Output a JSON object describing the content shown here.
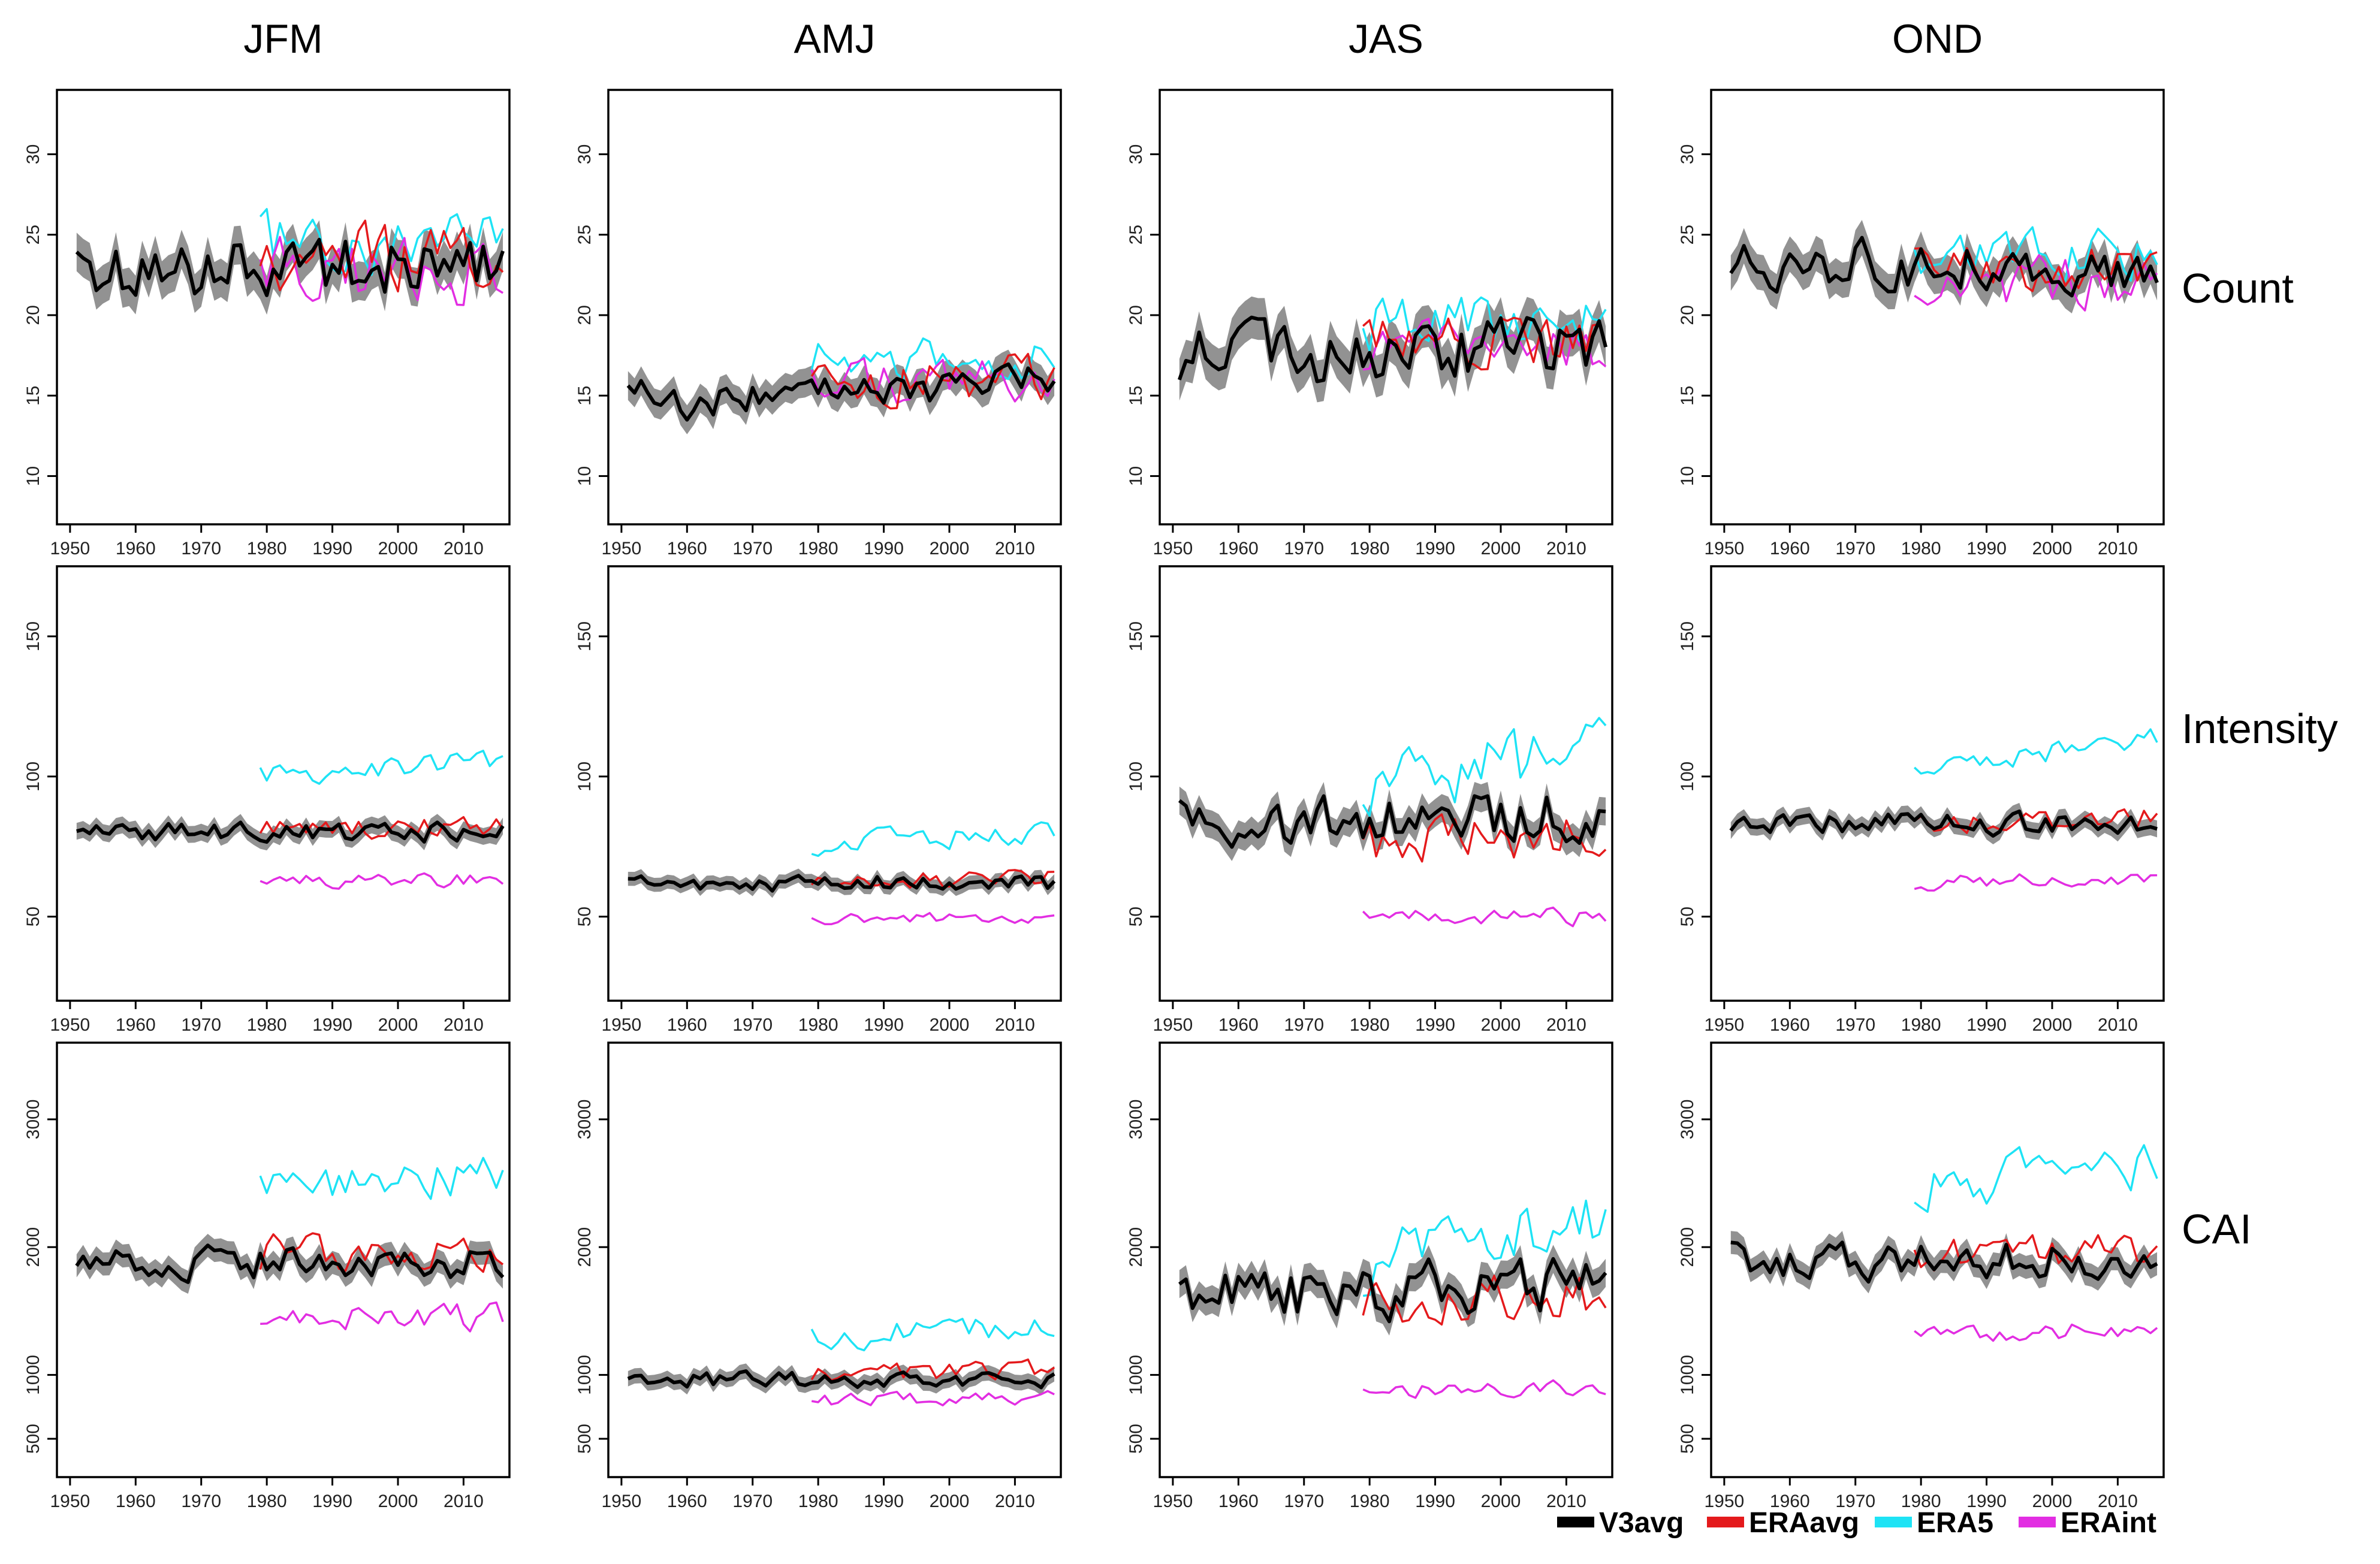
{
  "columns": [
    "JFM",
    "AMJ",
    "JAS",
    "OND"
  ],
  "rows": [
    {
      "label": "Count",
      "ylim": [
        7,
        34
      ],
      "ticks": [
        10,
        15,
        20,
        25,
        30
      ]
    },
    {
      "label": "Intensity",
      "ylim": [
        20,
        175
      ],
      "ticks": [
        50,
        100,
        150
      ]
    },
    {
      "label": "CAI",
      "ylim": [
        200,
        3600
      ],
      "ticks": [
        500,
        1000,
        2000,
        3000
      ]
    }
  ],
  "x_axis": {
    "xlim": [
      1948,
      2017
    ],
    "ticks": [
      1950,
      1960,
      1970,
      1980,
      1990,
      2000,
      2010
    ]
  },
  "legend": [
    {
      "name": "V3avg",
      "color": "#000000"
    },
    {
      "name": "ERAavg",
      "color": "#e41a1c"
    },
    {
      "name": "ERA5",
      "color": "#1ee3f5"
    },
    {
      "name": "ERAint",
      "color": "#e22ee2"
    }
  ],
  "band_color": "#7f7f7f",
  "chart_data": [
    {
      "type": "line",
      "row": "Count",
      "column": "JFM",
      "ylim": [
        7,
        34
      ],
      "x_start": 1951,
      "x_end": 2016,
      "series": [
        {
          "name": "V3avg",
          "x_start": 1951,
          "base": 23,
          "trend": 0.0,
          "amp": 2.0,
          "band": 1.2,
          "seed": 11
        },
        {
          "name": "ERAavg",
          "x_start": 1979,
          "base": 23.5,
          "trend": 0.0,
          "amp": 2.0,
          "seed": 12
        },
        {
          "name": "ERA5",
          "x_start": 1979,
          "base": 24.5,
          "trend": 0.0,
          "amp": 1.8,
          "seed": 13
        },
        {
          "name": "ERAint",
          "x_start": 1979,
          "base": 23.0,
          "trend": 0.0,
          "amp": 2.2,
          "seed": 14
        }
      ]
    },
    {
      "type": "line",
      "row": "Count",
      "column": "AMJ",
      "ylim": [
        7,
        34
      ],
      "x_start": 1951,
      "x_end": 2016,
      "series": [
        {
          "name": "V3avg",
          "x_start": 1951,
          "base": 15.2,
          "trend": 0.02,
          "amp": 1.2,
          "band": 0.9,
          "seed": 21
        },
        {
          "name": "ERAavg",
          "x_start": 1979,
          "base": 16.0,
          "trend": 0.0,
          "amp": 1.4,
          "seed": 22
        },
        {
          "name": "ERA5",
          "x_start": 1979,
          "base": 17.3,
          "trend": 0.0,
          "amp": 1.3,
          "seed": 23
        },
        {
          "name": "ERAint",
          "x_start": 1979,
          "base": 15.8,
          "trend": 0.0,
          "amp": 1.4,
          "seed": 24
        }
      ]
    },
    {
      "type": "line",
      "row": "Count",
      "column": "JAS",
      "ylim": [
        7,
        34
      ],
      "x_start": 1951,
      "x_end": 2016,
      "series": [
        {
          "name": "V3avg",
          "x_start": 1951,
          "base": 17.5,
          "trend": 0.01,
          "amp": 2.0,
          "band": 1.3,
          "seed": 31
        },
        {
          "name": "ERAavg",
          "x_start": 1979,
          "base": 18.5,
          "trend": 0.0,
          "amp": 1.6,
          "seed": 32
        },
        {
          "name": "ERA5",
          "x_start": 1979,
          "base": 19.5,
          "trend": 0.0,
          "amp": 1.8,
          "seed": 33
        },
        {
          "name": "ERAint",
          "x_start": 1979,
          "base": 18.0,
          "trend": 0.0,
          "amp": 1.6,
          "seed": 34
        }
      ]
    },
    {
      "type": "line",
      "row": "Count",
      "column": "OND",
      "ylim": [
        7,
        34
      ],
      "x_start": 1951,
      "x_end": 2016,
      "series": [
        {
          "name": "V3avg",
          "x_start": 1951,
          "base": 23.0,
          "trend": 0.0,
          "amp": 1.6,
          "band": 1.1,
          "seed": 41
        },
        {
          "name": "ERAavg",
          "x_start": 1979,
          "base": 22.8,
          "trend": 0.0,
          "amp": 1.5,
          "seed": 42
        },
        {
          "name": "ERA5",
          "x_start": 1979,
          "base": 23.8,
          "trend": 0.0,
          "amp": 1.5,
          "seed": 43
        },
        {
          "name": "ERAint",
          "x_start": 1979,
          "base": 22.0,
          "trend": 0.0,
          "amp": 1.6,
          "seed": 44
        }
      ]
    },
    {
      "type": "line",
      "row": "Intensity",
      "column": "JFM",
      "ylim": [
        20,
        175
      ],
      "x_start": 1951,
      "x_end": 2016,
      "series": [
        {
          "name": "V3avg",
          "x_start": 1951,
          "base": 80,
          "trend": 0.0,
          "amp": 3.5,
          "band": 3.0,
          "seed": 51
        },
        {
          "name": "ERAavg",
          "x_start": 1979,
          "base": 82,
          "trend": 0.0,
          "amp": 4.0,
          "seed": 52
        },
        {
          "name": "ERA5",
          "x_start": 1979,
          "base": 101,
          "trend": 0.12,
          "amp": 4.0,
          "seed": 53
        },
        {
          "name": "ERAint",
          "x_start": 1979,
          "base": 63,
          "trend": 0.0,
          "amp": 2.5,
          "seed": 54
        }
      ]
    },
    {
      "type": "line",
      "row": "Intensity",
      "column": "AMJ",
      "ylim": [
        20,
        175
      ],
      "x_start": 1951,
      "x_end": 2016,
      "series": [
        {
          "name": "V3avg",
          "x_start": 1951,
          "base": 62,
          "trend": 0.0,
          "amp": 3.0,
          "band": 2.5,
          "seed": 61
        },
        {
          "name": "ERAavg",
          "x_start": 1979,
          "base": 62,
          "trend": 0.05,
          "amp": 3.0,
          "seed": 62
        },
        {
          "name": "ERA5",
          "x_start": 1979,
          "base": 76,
          "trend": 0.1,
          "amp": 4.0,
          "seed": 63
        },
        {
          "name": "ERAint",
          "x_start": 1979,
          "base": 49,
          "trend": 0.02,
          "amp": 2.0,
          "seed": 64
        }
      ]
    },
    {
      "type": "line",
      "row": "Intensity",
      "column": "JAS",
      "ylim": [
        20,
        175
      ],
      "x_start": 1951,
      "x_end": 2016,
      "series": [
        {
          "name": "V3avg",
          "x_start": 1951,
          "base": 85,
          "trend": 0.05,
          "amp": 9.0,
          "band": 5.0,
          "seed": 71
        },
        {
          "name": "ERAavg",
          "x_start": 1979,
          "base": 76,
          "trend": 0.15,
          "amp": 9.0,
          "seed": 72
        },
        {
          "name": "ERA5",
          "x_start": 1979,
          "base": 96,
          "trend": 0.4,
          "amp": 11.0,
          "seed": 73
        },
        {
          "name": "ERAint",
          "x_start": 1979,
          "base": 50,
          "trend": 0.0,
          "amp": 3.0,
          "seed": 74
        }
      ]
    },
    {
      "type": "line",
      "row": "Intensity",
      "column": "OND",
      "ylim": [
        20,
        175
      ],
      "x_start": 1951,
      "x_end": 2016,
      "series": [
        {
          "name": "V3avg",
          "x_start": 1951,
          "base": 83,
          "trend": 0.0,
          "amp": 4.0,
          "band": 3.0,
          "seed": 81
        },
        {
          "name": "ERAavg",
          "x_start": 1979,
          "base": 82,
          "trend": 0.1,
          "amp": 4.0,
          "seed": 82
        },
        {
          "name": "ERA5",
          "x_start": 1979,
          "base": 104,
          "trend": 0.25,
          "amp": 4.0,
          "seed": 83
        },
        {
          "name": "ERAint",
          "x_start": 1979,
          "base": 62,
          "trend": 0.05,
          "amp": 2.5,
          "seed": 84
        }
      ]
    },
    {
      "type": "line",
      "row": "CAI",
      "column": "JFM",
      "ylim": [
        200,
        3600
      ],
      "x_start": 1951,
      "x_end": 2016,
      "series": [
        {
          "name": "V3avg",
          "x_start": 1951,
          "base": 1880,
          "trend": 0.0,
          "amp": 130,
          "band": 90,
          "seed": 91
        },
        {
          "name": "ERAavg",
          "x_start": 1979,
          "base": 1950,
          "trend": 0.0,
          "amp": 140,
          "seed": 92
        },
        {
          "name": "ERA5",
          "x_start": 1979,
          "base": 2520,
          "trend": 2.0,
          "amp": 170,
          "seed": 93
        },
        {
          "name": "ERAint",
          "x_start": 1979,
          "base": 1450,
          "trend": 0.0,
          "amp": 110,
          "seed": 94
        }
      ]
    },
    {
      "type": "line",
      "row": "CAI",
      "column": "AMJ",
      "ylim": [
        200,
        3600
      ],
      "x_start": 1951,
      "x_end": 2016,
      "series": [
        {
          "name": "V3avg",
          "x_start": 1951,
          "base": 960,
          "trend": 0.0,
          "amp": 60,
          "band": 60,
          "seed": 101
        },
        {
          "name": "ERAavg",
          "x_start": 1979,
          "base": 1000,
          "trend": 1.0,
          "amp": 70,
          "seed": 102
        },
        {
          "name": "ERA5",
          "x_start": 1979,
          "base": 1300,
          "trend": 2.5,
          "amp": 100,
          "seed": 103
        },
        {
          "name": "ERAint",
          "x_start": 1979,
          "base": 800,
          "trend": 0.5,
          "amp": 50,
          "seed": 104
        }
      ]
    },
    {
      "type": "line",
      "row": "CAI",
      "column": "JAS",
      "ylim": [
        200,
        3600
      ],
      "x_start": 1951,
      "x_end": 2016,
      "series": [
        {
          "name": "V3avg",
          "x_start": 1951,
          "base": 1650,
          "trend": 2.0,
          "amp": 220,
          "band": 110,
          "seed": 111
        },
        {
          "name": "ERAavg",
          "x_start": 1979,
          "base": 1500,
          "trend": 4.0,
          "amp": 200,
          "seed": 112
        },
        {
          "name": "ERA5",
          "x_start": 1979,
          "base": 1850,
          "trend": 12.0,
          "amp": 260,
          "seed": 113
        },
        {
          "name": "ERAint",
          "x_start": 1979,
          "base": 870,
          "trend": 1.0,
          "amp": 60,
          "seed": 114
        }
      ]
    },
    {
      "type": "line",
      "row": "CAI",
      "column": "OND",
      "ylim": [
        200,
        3600
      ],
      "x_start": 1951,
      "x_end": 2016,
      "series": [
        {
          "name": "V3avg",
          "x_start": 1951,
          "base": 1900,
          "trend": 0.0,
          "amp": 150,
          "band": 90,
          "seed": 121
        },
        {
          "name": "ERAavg",
          "x_start": 1979,
          "base": 1950,
          "trend": 0.5,
          "amp": 130,
          "seed": 122
        },
        {
          "name": "ERA5",
          "x_start": 1979,
          "base": 2450,
          "trend": 6.0,
          "amp": 200,
          "seed": 123
        },
        {
          "name": "ERAint",
          "x_start": 1979,
          "base": 1300,
          "trend": 2.0,
          "amp": 70,
          "seed": 124
        }
      ]
    }
  ]
}
